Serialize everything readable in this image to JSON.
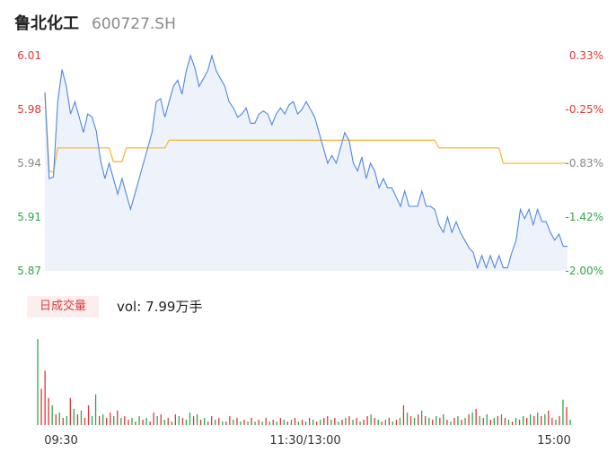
{
  "header": {
    "name": "鲁北化工",
    "code": "600727.SH"
  },
  "volume_panel": {
    "tag_label": "日成交量",
    "vol_label": "vol:",
    "vol_value": "7.99万手"
  },
  "colors": {
    "price_line": "#4f86e6",
    "price_fill": "#eef3fb",
    "avg_line": "#f5b942",
    "up": "#e23434",
    "down": "#2aa84a",
    "neutral": "#888888"
  },
  "chart_data": {
    "type": "line",
    "title": "",
    "xlabel": "",
    "ylabel": "",
    "y_ticks": [
      "6.01",
      "5.98",
      "5.94",
      "5.91",
      "5.87"
    ],
    "pct_ticks": [
      "0.33%",
      "-0.25%",
      "-0.83%",
      "-1.42%",
      "-2.00%"
    ],
    "ylim": [
      5.87,
      6.01
    ],
    "x_ticks": [
      "09:30",
      "11:30/13:00",
      "15:00"
    ],
    "series": [
      {
        "values": [
          5.986,
          5.93,
          5.931,
          5.98,
          6.001,
          5.99,
          5.972,
          5.98,
          5.97,
          5.96,
          5.972,
          5.97,
          5.961,
          5.942,
          5.93,
          5.94,
          5.93,
          5.92,
          5.93,
          5.92,
          5.91,
          5.92,
          5.93,
          5.94,
          5.95,
          5.96,
          5.98,
          5.982,
          5.97,
          5.98,
          5.99,
          5.994,
          5.985,
          6.0,
          6.01,
          6.002,
          5.99,
          5.995,
          6.0,
          6.01,
          6.0,
          5.995,
          5.99,
          5.98,
          5.976,
          5.97,
          5.972,
          5.976,
          5.966,
          5.966,
          5.972,
          5.974,
          5.972,
          5.965,
          5.972,
          5.976,
          5.972,
          5.978,
          5.98,
          5.972,
          5.975,
          5.98,
          5.975,
          5.97,
          5.96,
          5.95,
          5.94,
          5.945,
          5.94,
          5.95,
          5.96,
          5.955,
          5.94,
          5.935,
          5.944,
          5.93,
          5.94,
          5.935,
          5.924,
          5.93,
          5.924,
          5.924,
          5.918,
          5.912,
          5.922,
          5.912,
          5.912,
          5.912,
          5.922,
          5.912,
          5.912,
          5.91,
          5.9,
          5.895,
          5.905,
          5.895,
          5.902,
          5.895,
          5.89,
          5.885,
          5.882,
          5.872,
          5.88,
          5.872,
          5.88,
          5.872,
          5.88,
          5.872,
          5.872,
          5.882,
          5.89,
          5.91,
          5.904,
          5.91,
          5.9,
          5.91,
          5.902,
          5.902,
          5.895,
          5.89,
          5.894,
          5.886,
          5.886
        ],
        "color": "#4f86e6"
      },
      {
        "values": [
          5.986,
          5.935,
          5.934,
          5.95,
          5.95,
          5.95,
          5.95,
          5.95,
          5.95,
          5.95,
          5.95,
          5.95,
          5.95,
          5.95,
          5.95,
          5.95,
          5.941,
          5.941,
          5.941,
          5.95,
          5.95,
          5.95,
          5.95,
          5.95,
          5.95,
          5.95,
          5.95,
          5.95,
          5.95,
          5.955,
          5.955,
          5.955,
          5.955,
          5.955,
          5.955,
          5.955,
          5.955,
          5.955,
          5.955,
          5.955,
          5.955,
          5.955,
          5.955,
          5.955,
          5.955,
          5.955,
          5.955,
          5.955,
          5.955,
          5.955,
          5.955,
          5.955,
          5.955,
          5.955,
          5.955,
          5.955,
          5.955,
          5.955,
          5.955,
          5.955,
          5.955,
          5.955,
          5.955,
          5.955,
          5.955,
          5.955,
          5.955,
          5.955,
          5.955,
          5.955,
          5.955,
          5.955,
          5.955,
          5.955,
          5.955,
          5.955,
          5.955,
          5.955,
          5.955,
          5.955,
          5.955,
          5.955,
          5.955,
          5.955,
          5.955,
          5.955,
          5.955,
          5.955,
          5.955,
          5.955,
          5.955,
          5.955,
          5.95,
          5.95,
          5.95,
          5.95,
          5.95,
          5.95,
          5.95,
          5.95,
          5.95,
          5.95,
          5.95,
          5.95,
          5.95,
          5.95,
          5.95,
          5.94,
          5.94,
          5.94,
          5.94,
          5.94,
          5.94,
          5.94,
          5.94,
          5.94,
          5.94,
          5.94,
          5.94,
          5.94,
          5.94,
          5.94,
          5.94
        ],
        "color": "#f5b942"
      }
    ],
    "volume": [
      95,
      40,
      60,
      30,
      22,
      12,
      14,
      8,
      10,
      30,
      18,
      12,
      16,
      8,
      22,
      10,
      34,
      10,
      12,
      8,
      14,
      10,
      16,
      8,
      10,
      6,
      8,
      4,
      10,
      6,
      8,
      4,
      14,
      10,
      12,
      6,
      8,
      4,
      12,
      10,
      8,
      6,
      14,
      10,
      12,
      6,
      8,
      4,
      10,
      6,
      8,
      4,
      4,
      10,
      6,
      8,
      4,
      6,
      4,
      8,
      4,
      6,
      4,
      8,
      4,
      6,
      4,
      8,
      6,
      4,
      6,
      8,
      4,
      6,
      4,
      8,
      6,
      4,
      6,
      8,
      10,
      6,
      8,
      4,
      6,
      8,
      10,
      6,
      8,
      4,
      6,
      10,
      12,
      8,
      6,
      4,
      6,
      8,
      4,
      6,
      8,
      22,
      14,
      10,
      8,
      12,
      16,
      10,
      8,
      6,
      10,
      8,
      12,
      6,
      4,
      8,
      10,
      6,
      8,
      12,
      14,
      18,
      10,
      8,
      12,
      6,
      8,
      10,
      12,
      8,
      6,
      4,
      8,
      6,
      10,
      8,
      12,
      10,
      14,
      10,
      12,
      16,
      8,
      6,
      10,
      28,
      20,
      6
    ],
    "volume_colors": [
      "down",
      "up",
      "up",
      "up",
      "down",
      "up",
      "down",
      "up",
      "down",
      "up",
      "down",
      "up",
      "down",
      "up",
      "up",
      "down",
      "down",
      "up",
      "down",
      "up",
      "up",
      "down",
      "up",
      "down",
      "up",
      "up",
      "down",
      "up",
      "down",
      "up",
      "down",
      "up",
      "up",
      "down",
      "up",
      "down",
      "up",
      "down",
      "up",
      "down",
      "up",
      "down",
      "down",
      "up",
      "down",
      "up",
      "down",
      "up",
      "up",
      "down",
      "up",
      "down",
      "up",
      "up",
      "down",
      "up",
      "down",
      "up",
      "down",
      "up",
      "down",
      "up",
      "down",
      "up",
      "down",
      "up",
      "down",
      "up",
      "down",
      "up",
      "down",
      "up",
      "down",
      "up",
      "down",
      "up",
      "down",
      "up",
      "down",
      "up",
      "up",
      "down",
      "up",
      "down",
      "up",
      "down",
      "up",
      "down",
      "up",
      "down",
      "up",
      "up",
      "down",
      "up",
      "down",
      "up",
      "down",
      "up",
      "down",
      "up",
      "down",
      "up",
      "down",
      "up",
      "down",
      "up",
      "down",
      "up",
      "down",
      "up",
      "down",
      "up",
      "down",
      "up",
      "down",
      "up",
      "down",
      "up",
      "down",
      "up",
      "down",
      "up",
      "down",
      "up",
      "down",
      "up",
      "down",
      "up",
      "down",
      "up",
      "down",
      "up",
      "down",
      "up",
      "down",
      "up",
      "down",
      "up",
      "down",
      "up",
      "down",
      "up",
      "up",
      "down",
      "up",
      "down",
      "up"
    ]
  }
}
